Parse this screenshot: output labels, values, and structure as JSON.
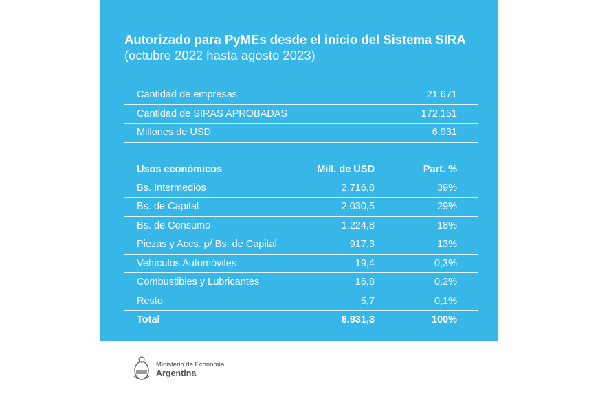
{
  "title": "Autorizado para PyMEs desde el inicio del Sistema SIRA",
  "subtitle": "(octubre 2022 hasta agosto 2023)",
  "summary": [
    {
      "label": "Cantidad de empresas",
      "value": "21.671"
    },
    {
      "label": "Cantidad de SIRAS APROBADAS",
      "value": "172.151"
    },
    {
      "label": "Millones de USD",
      "value": "6.931"
    }
  ],
  "usos": {
    "headers": [
      "Usos económicos",
      "Mill. de USD",
      "Part. %"
    ],
    "rows": [
      [
        "Bs. Intermedios",
        "2.716,8",
        "39%"
      ],
      [
        "Bs. de Capital",
        "2.030,5",
        "29%"
      ],
      [
        "Bs. de Consumo",
        "1.224,8",
        "18%"
      ],
      [
        "Piezas y Accs. p/ Bs. de Capital",
        "917,3",
        "13%"
      ],
      [
        "Vehículos Automóviles",
        "19,4",
        "0,3%"
      ],
      [
        "Combustibles y Lubricantes",
        "16,8",
        "0,2%"
      ],
      [
        "Resto",
        "5,7",
        "0,1%"
      ]
    ],
    "total": [
      "Total",
      "6.931,3",
      "100%"
    ]
  },
  "footer": {
    "ministry": "Ministerio de Economía",
    "country": "Argentina"
  },
  "colors": {
    "panel": "#37b6e8"
  }
}
